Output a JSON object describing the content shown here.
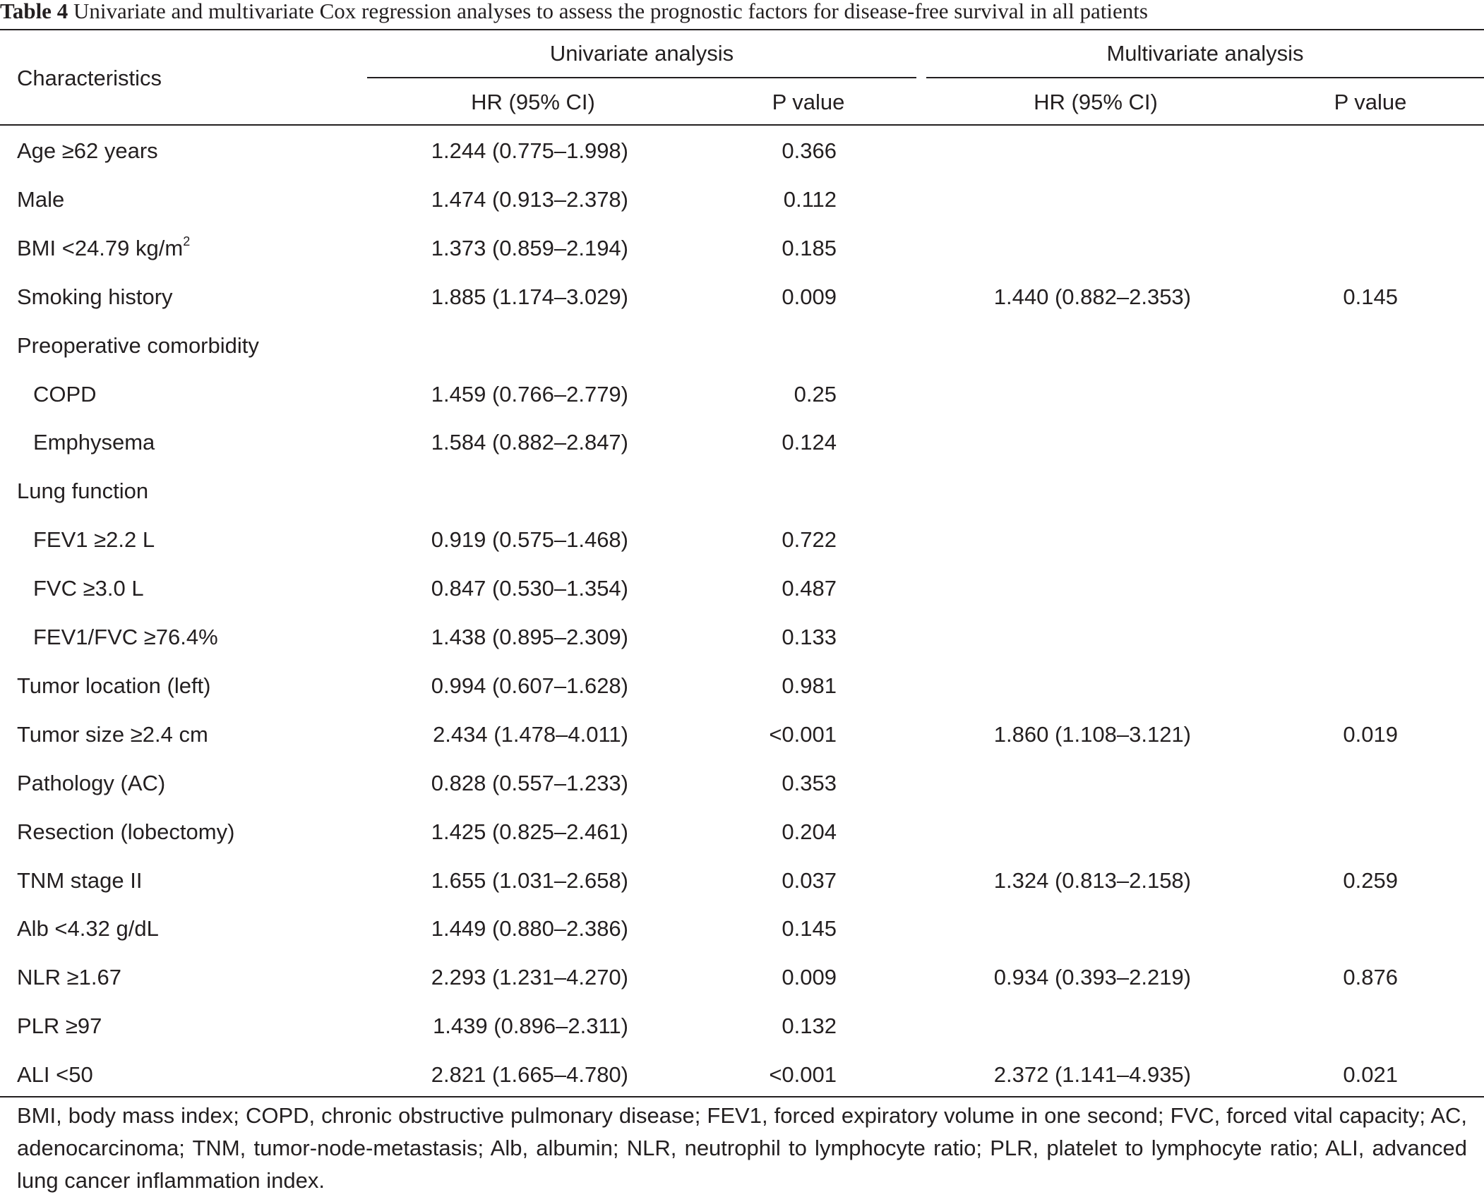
{
  "table": {
    "caption_label": "Table 4",
    "caption_text": "Univariate and multivariate Cox regression analyses to assess the prognostic factors for disease-free survival in all patients",
    "header": {
      "characteristics": "Characteristics",
      "univariate": "Univariate analysis",
      "multivariate": "Multivariate analysis",
      "hr_uni": "HR (95% CI)",
      "p_uni": "P value",
      "hr_multi": "HR (95% CI)",
      "p_multi": "P value"
    },
    "rows": [
      {
        "label": "Age ≥62 years",
        "indent": false,
        "hr_uni": "1.244 (0.775–1.998)",
        "p_uni": "0.366",
        "hr_multi": "",
        "p_multi": ""
      },
      {
        "label": "Male",
        "indent": false,
        "hr_uni": "1.474 (0.913–2.378)",
        "p_uni": "0.112",
        "hr_multi": "",
        "p_multi": ""
      },
      {
        "label": "BMI <24.79 kg/m",
        "sup": "2",
        "indent": false,
        "hr_uni": "1.373 (0.859–2.194)",
        "p_uni": "0.185",
        "hr_multi": "",
        "p_multi": ""
      },
      {
        "label": "Smoking history",
        "indent": false,
        "hr_uni": "1.885 (1.174–3.029)",
        "p_uni": "0.009",
        "hr_multi": "1.440 (0.882–2.353)",
        "p_multi": "0.145"
      },
      {
        "label": "Preoperative comorbidity",
        "indent": false,
        "hr_uni": "",
        "p_uni": "",
        "hr_multi": "",
        "p_multi": ""
      },
      {
        "label": "COPD",
        "indent": true,
        "hr_uni": "1.459 (0.766–2.779)",
        "p_uni": "0.25",
        "hr_multi": "",
        "p_multi": ""
      },
      {
        "label": "Emphysema",
        "indent": true,
        "hr_uni": "1.584 (0.882–2.847)",
        "p_uni": "0.124",
        "hr_multi": "",
        "p_multi": ""
      },
      {
        "label": "Lung function",
        "indent": false,
        "hr_uni": "",
        "p_uni": "",
        "hr_multi": "",
        "p_multi": ""
      },
      {
        "label": "FEV1 ≥2.2 L",
        "indent": true,
        "hr_uni": "0.919 (0.575–1.468)",
        "p_uni": "0.722",
        "hr_multi": "",
        "p_multi": ""
      },
      {
        "label": "FVC ≥3.0 L",
        "indent": true,
        "hr_uni": "0.847 (0.530–1.354)",
        "p_uni": "0.487",
        "hr_multi": "",
        "p_multi": ""
      },
      {
        "label": "FEV1/FVC ≥76.4%",
        "indent": true,
        "hr_uni": "1.438 (0.895–2.309)",
        "p_uni": "0.133",
        "hr_multi": "",
        "p_multi": ""
      },
      {
        "label": "Tumor location (left)",
        "indent": false,
        "hr_uni": "0.994 (0.607–1.628)",
        "p_uni": "0.981",
        "hr_multi": "",
        "p_multi": ""
      },
      {
        "label": "Tumor size ≥2.4 cm",
        "indent": false,
        "hr_uni": "2.434 (1.478–4.011)",
        "p_uni": "<0.001",
        "hr_multi": "1.860 (1.108–3.121)",
        "p_multi": "0.019"
      },
      {
        "label": "Pathology (AC)",
        "indent": false,
        "hr_uni": "0.828 (0.557–1.233)",
        "p_uni": "0.353",
        "hr_multi": "",
        "p_multi": ""
      },
      {
        "label": "Resection (lobectomy)",
        "indent": false,
        "hr_uni": "1.425 (0.825–2.461)",
        "p_uni": "0.204",
        "hr_multi": "",
        "p_multi": ""
      },
      {
        "label": "TNM stage II",
        "indent": false,
        "hr_uni": "1.655 (1.031–2.658)",
        "p_uni": "0.037",
        "hr_multi": "1.324 (0.813–2.158)",
        "p_multi": "0.259"
      },
      {
        "label": "Alb <4.32 g/dL",
        "indent": false,
        "hr_uni": "1.449 (0.880–2.386)",
        "p_uni": "0.145",
        "hr_multi": "",
        "p_multi": ""
      },
      {
        "label": "NLR ≥1.67",
        "indent": false,
        "hr_uni": "2.293 (1.231–4.270)",
        "p_uni": "0.009",
        "hr_multi": "0.934 (0.393–2.219)",
        "p_multi": "0.876"
      },
      {
        "label": "PLR ≥97",
        "indent": false,
        "hr_uni": "1.439 (0.896–2.311)",
        "p_uni": "0.132",
        "hr_multi": "",
        "p_multi": ""
      },
      {
        "label": "ALI <50",
        "indent": false,
        "hr_uni": "2.821 (1.665–4.780)",
        "p_uni": "<0.001",
        "hr_multi": "2.372 (1.141–4.935)",
        "p_multi": "0.021"
      }
    ],
    "footnote": "BMI, body mass index; COPD, chronic obstructive pulmonary disease; FEV1, forced expiratory volume in one second; FVC, forced vital capacity; AC, adenocarcinoma; TNM, tumor-node-metastasis; Alb, albumin; NLR, neutrophil to lymphocyte ratio; PLR, platelet to lymphocyte ratio; ALI, advanced lung cancer inflammation index."
  }
}
